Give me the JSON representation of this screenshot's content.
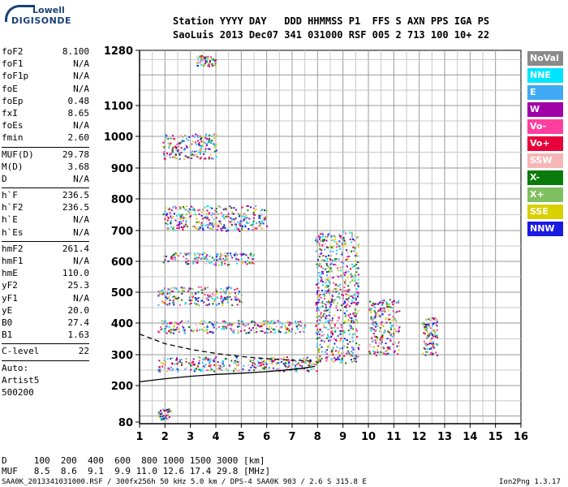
{
  "logo": {
    "line1": "Lowell",
    "line2": "DIGISONDE"
  },
  "header": {
    "row1": "Station YYYY DAY   DDD HHMMSS P1  FFS S AXN PPS IGA PS",
    "row2": "SaoLuis 2013 Dec07 341 031000 RSF 005 2 713 100 10+ 22"
  },
  "params": [
    {
      "name": "foF2",
      "value": "8.100"
    },
    {
      "name": "foF1",
      "value": "N/A"
    },
    {
      "name": "foF1p",
      "value": "N/A"
    },
    {
      "name": "foE",
      "value": "N/A"
    },
    {
      "name": "foEp",
      "value": "0.48"
    },
    {
      "name": "fxI",
      "value": "8.65"
    },
    {
      "name": "foEs",
      "value": "N/A"
    },
    {
      "name": "fmin",
      "value": "2.60"
    },
    {
      "name": "MUF(D)",
      "value": "29.78",
      "sep": true
    },
    {
      "name": "M(D)",
      "value": "3.68"
    },
    {
      "name": "D",
      "value": "N/A"
    },
    {
      "name": "h`F",
      "value": "236.5",
      "sep": true
    },
    {
      "name": "h`F2",
      "value": "236.5"
    },
    {
      "name": "h`E",
      "value": "N/A"
    },
    {
      "name": "h`Es",
      "value": "N/A"
    },
    {
      "name": "hmF2",
      "value": "261.4",
      "sep": true
    },
    {
      "name": "hmF1",
      "value": "N/A"
    },
    {
      "name": "hmE",
      "value": "110.0"
    },
    {
      "name": "yF2",
      "value": "25.3"
    },
    {
      "name": "yF1",
      "value": "N/A"
    },
    {
      "name": "yE",
      "value": "20.0"
    },
    {
      "name": "B0",
      "value": "27.4"
    },
    {
      "name": "B1",
      "value": "1.63"
    },
    {
      "name": "C-level",
      "value": "22",
      "sep": true
    },
    {
      "name": "Auto:",
      "value": "",
      "sep": true
    },
    {
      "name": "Artist5",
      "value": ""
    },
    {
      "name": "500200",
      "value": ""
    }
  ],
  "legend": [
    {
      "label": "NoVal",
      "color": "#8a8a8a"
    },
    {
      "label": "NNE",
      "color": "#00e5ff"
    },
    {
      "label": "E",
      "color": "#3fa9f5"
    },
    {
      "label": "W",
      "color": "#a000a8"
    },
    {
      "label": "Vo-",
      "color": "#ff3fa0"
    },
    {
      "label": "Vo+",
      "color": "#e8003a"
    },
    {
      "label": "SSW",
      "color": "#f6b6b6"
    },
    {
      "label": "X-",
      "color": "#0a7a0a"
    },
    {
      "label": "X+",
      "color": "#7fbf5f"
    },
    {
      "label": "SSE",
      "color": "#d8d000"
    },
    {
      "label": "NNW",
      "color": "#1a1ae0"
    }
  ],
  "footer": {
    "d_line": "D     100  200  400  600  800 1000 1500 3000 [km]",
    "muf_line": "MUF   8.5  8.6  9.1  9.9 11.0 12.6 17.4 29.8 [MHz]",
    "file_line": "SAA0K_2013341031000.RSF / 300fx256h 50 kHz 5.0 km / DPS-4 SAA0K 903 / 2.6 S 315.8 E",
    "version": "Ion2Png 1.3.17"
  },
  "chart_data": {
    "type": "scatter",
    "xlim": [
      1,
      16
    ],
    "xticks": [
      1,
      2,
      3,
      4,
      5,
      6,
      7,
      8,
      9,
      10,
      11,
      12,
      13,
      14,
      15,
      16
    ],
    "ylim": [
      80,
      1280
    ],
    "yticks": [
      80,
      200,
      300,
      400,
      500,
      600,
      700,
      800,
      900,
      1000,
      1100,
      1280
    ],
    "x_unit": "MHz",
    "y_unit": "km",
    "grid": true,
    "traces": [
      {
        "name": "virtual_height_profile",
        "color": "#000000",
        "style": "dashed",
        "x": [
          1.0,
          2.0,
          3.0,
          4.0,
          5.0,
          6.0,
          7.0,
          7.6,
          7.9
        ],
        "y": [
          365,
          335,
          317,
          304,
          294,
          287,
          282,
          280,
          278
        ]
      },
      {
        "name": "true_height_profile",
        "color": "#000000",
        "style": "solid",
        "x": [
          1.0,
          2.0,
          3.0,
          4.0,
          5.0,
          6.0,
          7.0,
          7.5,
          7.9
        ],
        "y": [
          212,
          222,
          230,
          236,
          240,
          245,
          252,
          257,
          262
        ]
      }
    ],
    "echo_bands": [
      {
        "x": [
          1.7,
          8.1
        ],
        "y": [
          248,
          295
        ]
      },
      {
        "x": [
          1.7,
          5.0
        ],
        "y": [
          460,
          520
        ]
      },
      {
        "x": [
          1.7,
          7.5
        ],
        "y": [
          370,
          410
        ]
      },
      {
        "x": [
          1.9,
          5.5
        ],
        "y": [
          590,
          630
        ]
      },
      {
        "x": [
          1.9,
          6.0
        ],
        "y": [
          700,
          780
        ]
      },
      {
        "x": [
          1.9,
          4.0
        ],
        "y": [
          930,
          1010
        ]
      },
      {
        "x": [
          3.2,
          4.0
        ],
        "y": [
          1230,
          1265
        ]
      },
      {
        "x": [
          7.9,
          9.6
        ],
        "y": [
          275,
          700
        ]
      },
      {
        "x": [
          10.0,
          11.2
        ],
        "y": [
          300,
          480
        ]
      },
      {
        "x": [
          12.1,
          12.7
        ],
        "y": [
          300,
          420
        ]
      },
      {
        "x": [
          1.7,
          2.2
        ],
        "y": [
          90,
          125
        ]
      }
    ]
  }
}
